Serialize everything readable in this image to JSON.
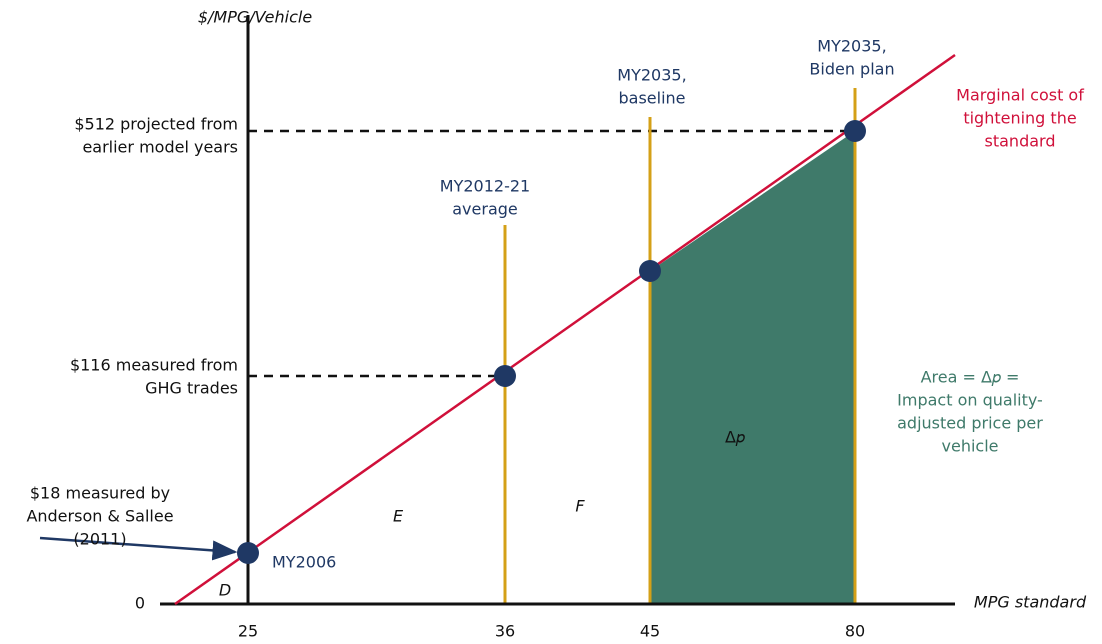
{
  "axes": {
    "y_title": "$/MPG/Vehicle",
    "x_title": "MPG standard",
    "origin": "0",
    "x_ticks": [
      "25",
      "36",
      "45",
      "80"
    ]
  },
  "y_annotations": [
    {
      "lines": [
        "$512 projected from",
        "earlier model years"
      ]
    },
    {
      "lines": [
        "$116 measured from",
        "GHG trades"
      ]
    },
    {
      "lines": [
        "$18 measured by",
        "Anderson & Sallee",
        "(2011)"
      ]
    }
  ],
  "point_labels": [
    {
      "lines": [
        "MY2006"
      ]
    },
    {
      "lines": [
        "MY2012-21",
        "average"
      ]
    },
    {
      "lines": [
        "MY2035,",
        "baseline"
      ]
    },
    {
      "lines": [
        "MY2035,",
        "Biden plan"
      ]
    }
  ],
  "curve_label": {
    "lines": [
      "Marginal cost of",
      "tightening the",
      "standard"
    ]
  },
  "area_note": {
    "lines": [
      "Area = Δ𝑝 =",
      "Impact on quality-",
      "adjusted price per",
      "vehicle"
    ]
  },
  "regions": {
    "d": "D",
    "e": "E",
    "f": "F",
    "delta": "Δ𝑝"
  }
}
